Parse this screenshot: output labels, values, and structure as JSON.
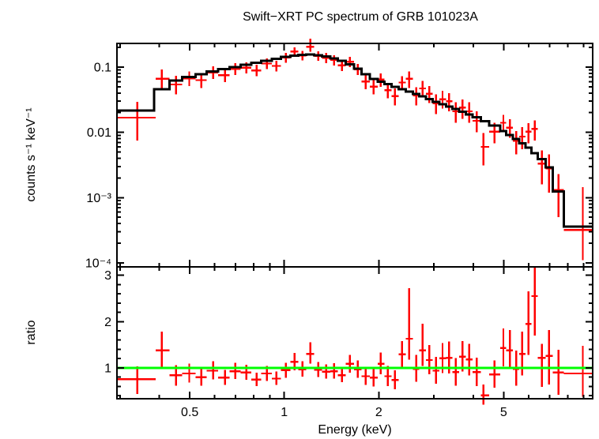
{
  "title": "Swift−XRT PC spectrum of GRB 101023A",
  "chart_data": {
    "type": "scatter",
    "description": "Two-panel X-ray spectrum: top = counts spectrum with folded model (stepped black line), bottom = data/model ratio with green unity line",
    "xlabel": "Energy (keV)",
    "panels": [
      {
        "name": "spectrum",
        "ylabel": "counts s⁻¹ keV⁻¹",
        "yscale": "log"
      },
      {
        "name": "ratio",
        "ylabel": "ratio",
        "yscale": "linear"
      }
    ],
    "axes": {
      "x": {
        "scale": "log",
        "min": 0.293,
        "max": 9.61
      },
      "spectrum_y": {
        "scale": "log",
        "min": 8.7e-05,
        "max": 0.23
      },
      "ratio_y": {
        "scale": "linear",
        "min": 0.335,
        "max": 3.18,
        "reference": 1
      }
    },
    "x_ticks": {
      "major": [
        {
          "value": 0.5,
          "label": "0.5"
        },
        {
          "value": 1,
          "label": "1"
        },
        {
          "value": 2,
          "label": "2"
        },
        {
          "value": 5,
          "label": "5"
        }
      ],
      "minor": [
        0.3,
        0.4,
        0.6,
        0.7,
        0.8,
        0.9,
        3,
        4,
        6,
        7,
        8,
        9
      ]
    },
    "spectrum_y_ticks": {
      "major": [
        {
          "value": 0.1,
          "label": "0.1"
        },
        {
          "value": 0.01,
          "label": "0.01"
        },
        {
          "value": 0.001,
          "label": "10⁻³"
        },
        {
          "value": 0.0001,
          "label": "10⁻⁴"
        }
      ],
      "minor": [
        0.0002,
        0.0003,
        0.0004,
        0.0005,
        0.0006,
        0.0007,
        0.0008,
        0.0009,
        0.002,
        0.003,
        0.004,
        0.005,
        0.006,
        0.007,
        0.008,
        0.009,
        0.02,
        0.03,
        0.04,
        0.05,
        0.06,
        0.07,
        0.08,
        0.09,
        0.2
      ]
    },
    "ratio_y_ticks": {
      "major": [
        {
          "value": 1,
          "label": "1"
        },
        {
          "value": 2,
          "label": "2"
        },
        {
          "value": 3,
          "label": "3"
        }
      ],
      "minor": [
        0.4,
        0.6,
        0.8,
        1.2,
        1.4,
        1.6,
        1.8,
        2.2,
        2.4,
        2.6,
        2.8
      ]
    },
    "colors": {
      "data": "#ff0000",
      "model": "#000000",
      "ratio_line": "#00ff00",
      "frame": "#000000",
      "background": "#ffffff"
    },
    "model_steps": [
      [
        0.293,
        0.0216
      ],
      [
        0.385,
        0.046
      ],
      [
        0.431,
        0.062
      ],
      [
        0.473,
        0.07
      ],
      [
        0.522,
        0.078
      ],
      [
        0.566,
        0.085
      ],
      [
        0.615,
        0.0925
      ],
      [
        0.67,
        0.1
      ],
      [
        0.727,
        0.108
      ],
      [
        0.784,
        0.116
      ],
      [
        0.845,
        0.125
      ],
      [
        0.912,
        0.134
      ],
      [
        0.977,
        0.143
      ],
      [
        1.047,
        0.15
      ],
      [
        1.11,
        0.154
      ],
      [
        1.176,
        0.155
      ],
      [
        1.246,
        0.152
      ],
      [
        1.321,
        0.146
      ],
      [
        1.4,
        0.136
      ],
      [
        1.483,
        0.124
      ],
      [
        1.572,
        0.11
      ],
      [
        1.666,
        0.094
      ],
      [
        1.765,
        0.078
      ],
      [
        1.871,
        0.066
      ],
      [
        1.983,
        0.06
      ],
      [
        2.087,
        0.055
      ],
      [
        2.199,
        0.05
      ],
      [
        2.317,
        0.046
      ],
      [
        2.441,
        0.042
      ],
      [
        2.572,
        0.0385
      ],
      [
        2.692,
        0.0355
      ],
      [
        2.827,
        0.0325
      ],
      [
        2.969,
        0.0295
      ],
      [
        3.118,
        0.027
      ],
      [
        3.274,
        0.0248
      ],
      [
        3.438,
        0.0227
      ],
      [
        3.61,
        0.0207
      ],
      [
        3.791,
        0.0188
      ],
      [
        3.981,
        0.017
      ],
      [
        4.229,
        0.0149
      ],
      [
        4.5,
        0.0127
      ],
      [
        4.87,
        0.0104
      ],
      [
        5.1,
        0.0091
      ],
      [
        5.35,
        0.0079
      ],
      [
        5.61,
        0.0068
      ],
      [
        5.87,
        0.0058
      ],
      [
        6.14,
        0.0048
      ],
      [
        6.43,
        0.0039
      ],
      [
        6.81,
        0.0029
      ],
      [
        7.18,
        0.00125
      ],
      [
        7.78,
        0.00036
      ]
    ],
    "bins_columns": [
      "e_lo",
      "e",
      "e_hi",
      "counts",
      "counts_lo",
      "counts_hi",
      "ratio",
      "ratio_lo",
      "ratio_hi"
    ],
    "bins": [
      [
        0.293,
        0.34,
        0.389,
        0.0168,
        0.0075,
        0.0295,
        0.76,
        0.44,
        1.03
      ],
      [
        0.389,
        0.407,
        0.431,
        0.066,
        0.044,
        0.092,
        1.38,
        0.98,
        1.78
      ],
      [
        0.431,
        0.452,
        0.473,
        0.054,
        0.038,
        0.073,
        0.84,
        0.62,
        1.06
      ],
      [
        0.473,
        0.498,
        0.522,
        0.067,
        0.051,
        0.086,
        0.88,
        0.68,
        1.09
      ],
      [
        0.522,
        0.544,
        0.566,
        0.063,
        0.048,
        0.08,
        0.8,
        0.62,
        0.99
      ],
      [
        0.566,
        0.593,
        0.615,
        0.083,
        0.066,
        0.102,
        0.94,
        0.75,
        1.14
      ],
      [
        0.615,
        0.647,
        0.67,
        0.075,
        0.059,
        0.092,
        0.79,
        0.63,
        0.96
      ],
      [
        0.67,
        0.698,
        0.727,
        0.094,
        0.076,
        0.114,
        0.93,
        0.76,
        1.11
      ],
      [
        0.727,
        0.757,
        0.784,
        0.098,
        0.08,
        0.118,
        0.9,
        0.74,
        1.07
      ],
      [
        0.784,
        0.816,
        0.845,
        0.089,
        0.072,
        0.108,
        0.75,
        0.61,
        0.9
      ],
      [
        0.845,
        0.88,
        0.912,
        0.113,
        0.093,
        0.135,
        0.88,
        0.72,
        1.04
      ],
      [
        0.912,
        0.944,
        0.977,
        0.104,
        0.086,
        0.125,
        0.77,
        0.63,
        0.92
      ],
      [
        0.977,
        1.012,
        1.047,
        0.14,
        0.117,
        0.165,
        0.95,
        0.79,
        1.11
      ],
      [
        1.047,
        1.078,
        1.11,
        0.172,
        0.145,
        0.201,
        1.13,
        0.95,
        1.32
      ],
      [
        1.11,
        1.143,
        1.176,
        0.15,
        0.126,
        0.177,
        0.97,
        0.81,
        1.14
      ],
      [
        1.176,
        1.211,
        1.246,
        0.205,
        0.172,
        0.27,
        1.3,
        1.09,
        1.55
      ],
      [
        1.246,
        1.283,
        1.321,
        0.148,
        0.124,
        0.175,
        0.96,
        0.8,
        1.13
      ],
      [
        1.321,
        1.359,
        1.4,
        0.138,
        0.115,
        0.164,
        0.92,
        0.77,
        1.08
      ],
      [
        1.4,
        1.441,
        1.483,
        0.128,
        0.106,
        0.152,
        0.93,
        0.77,
        1.1
      ],
      [
        1.483,
        1.527,
        1.572,
        0.106,
        0.087,
        0.128,
        0.84,
        0.69,
        1.0
      ],
      [
        1.572,
        1.618,
        1.666,
        0.121,
        0.1,
        0.144,
        1.09,
        0.9,
        1.28
      ],
      [
        1.666,
        1.715,
        1.765,
        0.092,
        0.075,
        0.111,
        0.97,
        0.79,
        1.16
      ],
      [
        1.765,
        1.817,
        1.871,
        0.06,
        0.046,
        0.076,
        0.82,
        0.63,
        1.02
      ],
      [
        1.871,
        1.926,
        1.983,
        0.05,
        0.038,
        0.064,
        0.79,
        0.6,
        0.99
      ],
      [
        1.983,
        2.028,
        2.087,
        0.064,
        0.05,
        0.08,
        1.09,
        0.86,
        1.33
      ],
      [
        2.087,
        2.137,
        2.199,
        0.044,
        0.033,
        0.057,
        0.82,
        0.61,
        1.04
      ],
      [
        2.199,
        2.251,
        2.317,
        0.036,
        0.026,
        0.047,
        0.74,
        0.54,
        0.95
      ],
      [
        2.317,
        2.372,
        2.441,
        0.058,
        0.045,
        0.072,
        1.29,
        1.02,
        1.58
      ],
      [
        2.441,
        2.499,
        2.572,
        0.066,
        0.048,
        0.086,
        1.63,
        1.18,
        2.72
      ],
      [
        2.572,
        2.633,
        2.692,
        0.037,
        0.026,
        0.049,
        0.98,
        0.7,
        1.28
      ],
      [
        2.692,
        2.759,
        2.827,
        0.047,
        0.035,
        0.061,
        1.38,
        1.04,
        1.95
      ],
      [
        2.827,
        2.897,
        2.969,
        0.039,
        0.028,
        0.051,
        1.17,
        0.86,
        1.49
      ],
      [
        2.969,
        3.042,
        3.118,
        0.028,
        0.019,
        0.038,
        0.94,
        0.66,
        1.24
      ],
      [
        3.118,
        3.194,
        3.274,
        0.032,
        0.023,
        0.043,
        1.21,
        0.89,
        1.54
      ],
      [
        3.274,
        3.354,
        3.438,
        0.03,
        0.021,
        0.04,
        1.22,
        0.88,
        1.57
      ],
      [
        3.438,
        3.522,
        3.61,
        0.021,
        0.014,
        0.029,
        0.91,
        0.62,
        1.21
      ],
      [
        3.61,
        3.699,
        3.791,
        0.024,
        0.016,
        0.032,
        1.24,
        0.92,
        1.58
      ],
      [
        3.791,
        3.884,
        3.981,
        0.021,
        0.014,
        0.029,
        1.18,
        0.84,
        1.52
      ],
      [
        3.981,
        4.103,
        4.229,
        0.015,
        0.01,
        0.021,
        0.91,
        0.61,
        1.22
      ],
      [
        4.229,
        4.31,
        4.5,
        0.006,
        0.0031,
        0.0097,
        0.41,
        0.21,
        0.64
      ],
      [
        4.5,
        4.68,
        4.87,
        0.0102,
        0.0068,
        0.014,
        0.86,
        0.57,
        1.16
      ],
      [
        4.87,
        4.99,
        5.1,
        0.014,
        0.01,
        0.0184,
        1.43,
        1.03,
        1.85
      ],
      [
        5.1,
        5.23,
        5.35,
        0.0118,
        0.0082,
        0.0158,
        1.38,
        0.97,
        1.82
      ],
      [
        5.35,
        5.48,
        5.61,
        0.0074,
        0.0046,
        0.0105,
        0.98,
        0.62,
        1.37
      ],
      [
        5.61,
        5.73,
        5.87,
        0.0086,
        0.0055,
        0.012,
        1.3,
        0.84,
        1.78
      ],
      [
        5.87,
        6.0,
        6.14,
        0.0102,
        0.0068,
        0.0139,
        1.95,
        1.28,
        2.65
      ],
      [
        6.14,
        6.28,
        6.43,
        0.0113,
        0.0075,
        0.0153,
        2.55,
        1.7,
        3.18
      ],
      [
        6.43,
        6.62,
        6.81,
        0.0033,
        0.0016,
        0.0053,
        1.22,
        0.59,
        1.52
      ],
      [
        6.81,
        6.98,
        7.18,
        0.0028,
        0.0012,
        0.0046,
        1.26,
        0.64,
        1.82
      ],
      [
        7.18,
        7.48,
        7.78,
        0.0013,
        0.0005,
        0.0023,
        0.9,
        0.42,
        1.39
      ],
      [
        7.78,
        8.94,
        9.61,
        0.00032,
        0.00011,
        0.00145,
        0.88,
        0.38,
        1.48
      ]
    ]
  }
}
